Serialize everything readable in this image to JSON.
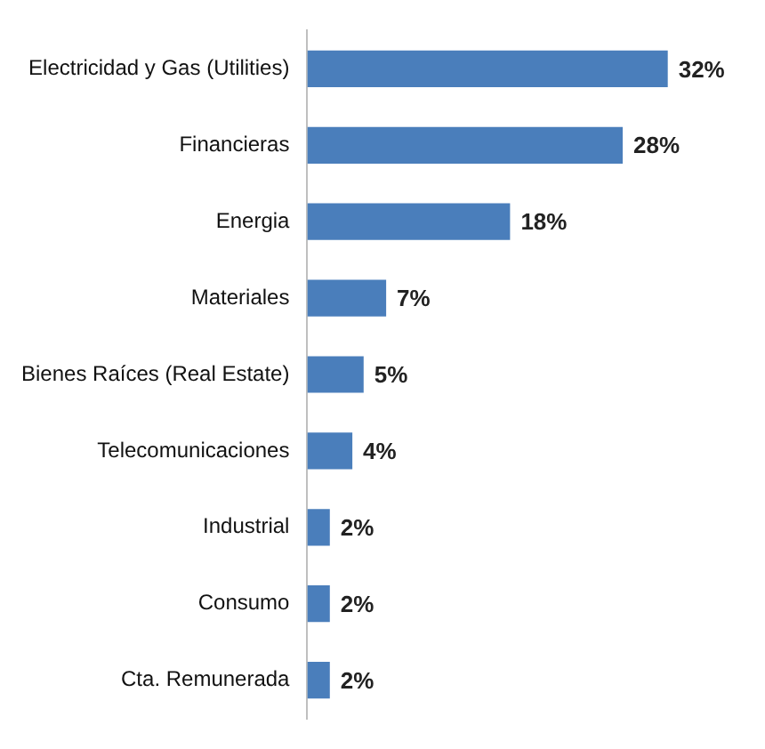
{
  "chart_data": {
    "type": "bar",
    "orientation": "horizontal",
    "categories": [
      "Electricidad y Gas (Utilities)",
      "Financieras",
      "Energia",
      "Materiales",
      "Bienes Raíces (Real Estate)",
      "Telecomunicaciones",
      "Industrial",
      "Consumo",
      "Cta. Remunerada"
    ],
    "values": [
      32,
      28,
      18,
      7,
      5,
      4,
      2,
      2,
      2
    ],
    "value_labels": [
      "32%",
      "28%",
      "18%",
      "7%",
      "5%",
      "4%",
      "2%",
      "2%",
      "2%"
    ],
    "color": "#4a7ebb",
    "legend": false,
    "tick_labels": "y"
  }
}
